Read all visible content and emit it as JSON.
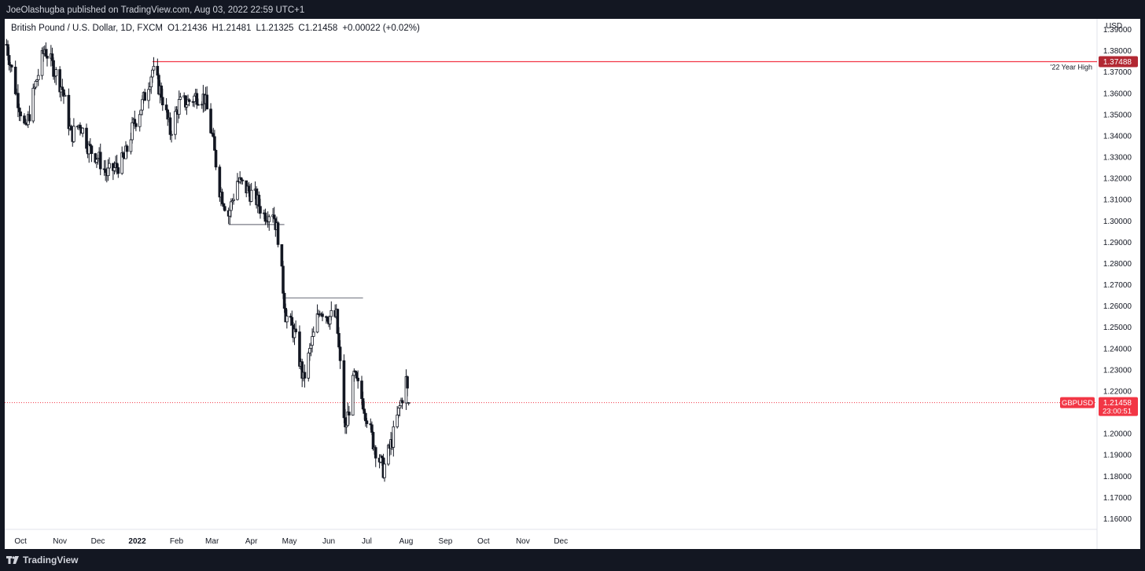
{
  "header": {
    "publisher_line": "JoeOlashugba published on TradingView.com, Aug 03, 2022 22:59 UTC+1"
  },
  "footer": {
    "brand": "TradingView",
    "logo_icon": "tradingview-logo-icon"
  },
  "chart_data": {
    "type": "candlestick",
    "title": "British Pound / U.S. Dollar, 1D, FXCM",
    "ohlc": {
      "open_label": "O",
      "open": "1.21436",
      "high_label": "H",
      "high": "1.21481",
      "low_label": "L",
      "low": "1.21325",
      "close_label": "C",
      "close": "1.21458",
      "change": "+0.00022 (+0.02%)"
    },
    "y_axis": {
      "unit_label": "USD",
      "range": [
        1.155,
        1.395
      ],
      "ticks": [
        "1.39000",
        "1.38000",
        "1.37000",
        "1.36000",
        "1.35000",
        "1.34000",
        "1.33000",
        "1.32000",
        "1.31000",
        "1.30000",
        "1.29000",
        "1.28000",
        "1.27000",
        "1.26000",
        "1.25000",
        "1.24000",
        "1.23000",
        "1.22000",
        "1.21000",
        "1.20000",
        "1.19000",
        "1.18000",
        "1.17000",
        "1.16000"
      ]
    },
    "x_axis": {
      "labels": [
        {
          "label": "Oct",
          "date": "2021-10-01"
        },
        {
          "label": "Nov",
          "date": "2021-11-01"
        },
        {
          "label": "Dec",
          "date": "2021-12-01"
        },
        {
          "label": "2022",
          "date": "2022-01-01",
          "bold": true
        },
        {
          "label": "Feb",
          "date": "2022-02-01"
        },
        {
          "label": "Mar",
          "date": "2022-03-01"
        },
        {
          "label": "Apr",
          "date": "2022-04-01"
        },
        {
          "label": "May",
          "date": "2022-05-01"
        },
        {
          "label": "Jun",
          "date": "2022-06-01"
        },
        {
          "label": "Jul",
          "date": "2022-07-01"
        },
        {
          "label": "Aug",
          "date": "2022-08-01"
        },
        {
          "label": "Sep",
          "date": "2022-09-01"
        },
        {
          "label": "Oct",
          "date": "2022-10-01"
        },
        {
          "label": "Nov",
          "date": "2022-11-01"
        },
        {
          "label": "Dec",
          "date": "2022-12-01"
        }
      ]
    },
    "close_path": [
      {
        "date": "2021-09-20",
        "close": 1.383
      },
      {
        "date": "2021-09-27",
        "close": 1.362
      },
      {
        "date": "2021-10-01",
        "close": 1.352
      },
      {
        "date": "2021-10-05",
        "close": 1.342
      },
      {
        "date": "2021-10-12",
        "close": 1.362
      },
      {
        "date": "2021-10-20",
        "close": 1.381
      },
      {
        "date": "2021-10-27",
        "close": 1.372
      },
      {
        "date": "2021-11-03",
        "close": 1.362
      },
      {
        "date": "2021-11-10",
        "close": 1.34
      },
      {
        "date": "2021-11-17",
        "close": 1.346
      },
      {
        "date": "2021-11-24",
        "close": 1.334
      },
      {
        "date": "2021-12-01",
        "close": 1.33
      },
      {
        "date": "2021-12-08",
        "close": 1.322
      },
      {
        "date": "2021-12-15",
        "close": 1.325
      },
      {
        "date": "2021-12-22",
        "close": 1.329
      },
      {
        "date": "2021-12-29",
        "close": 1.345
      },
      {
        "date": "2022-01-05",
        "close": 1.355
      },
      {
        "date": "2022-01-13",
        "close": 1.371
      },
      {
        "date": "2022-01-20",
        "close": 1.36
      },
      {
        "date": "2022-01-27",
        "close": 1.342
      },
      {
        "date": "2022-02-03",
        "close": 1.355
      },
      {
        "date": "2022-02-10",
        "close": 1.356
      },
      {
        "date": "2022-02-17",
        "close": 1.359
      },
      {
        "date": "2022-02-23",
        "close": 1.358
      },
      {
        "date": "2022-03-01",
        "close": 1.34
      },
      {
        "date": "2022-03-07",
        "close": 1.315
      },
      {
        "date": "2022-03-14",
        "close": 1.303
      },
      {
        "date": "2022-03-21",
        "close": 1.319
      },
      {
        "date": "2022-03-28",
        "close": 1.315
      },
      {
        "date": "2022-04-04",
        "close": 1.311
      },
      {
        "date": "2022-04-11",
        "close": 1.303
      },
      {
        "date": "2022-04-18",
        "close": 1.305
      },
      {
        "date": "2022-04-22",
        "close": 1.293
      },
      {
        "date": "2022-04-28",
        "close": 1.256
      },
      {
        "date": "2022-05-05",
        "close": 1.247
      },
      {
        "date": "2022-05-12",
        "close": 1.225
      },
      {
        "date": "2022-05-18",
        "close": 1.241
      },
      {
        "date": "2022-05-25",
        "close": 1.259
      },
      {
        "date": "2022-06-01",
        "close": 1.255
      },
      {
        "date": "2022-06-07",
        "close": 1.255
      },
      {
        "date": "2022-06-14",
        "close": 1.201
      },
      {
        "date": "2022-06-21",
        "close": 1.227
      },
      {
        "date": "2022-06-28",
        "close": 1.215
      },
      {
        "date": "2022-07-06",
        "close": 1.196
      },
      {
        "date": "2022-07-14",
        "close": 1.183
      },
      {
        "date": "2022-07-21",
        "close": 1.197
      },
      {
        "date": "2022-07-28",
        "close": 1.215
      },
      {
        "date": "2022-08-01",
        "close": 1.225
      },
      {
        "date": "2022-08-03",
        "close": 1.21458
      }
    ],
    "horizontal_lines": [
      {
        "start": "2022-01-13",
        "end": "2022-12-31",
        "price": 1.37488,
        "color": "#f23645",
        "text": "'22 Year High",
        "badge": "1.37488"
      },
      {
        "start": "2022-03-14",
        "end": "2022-04-27",
        "price": 1.2983,
        "color": "#787b86"
      },
      {
        "start": "2022-04-28",
        "end": "2022-06-28",
        "price": 1.2638,
        "color": "#787b86"
      }
    ],
    "last_price": {
      "symbol": "GBPUSD",
      "price": "1.21458",
      "countdown": "23:00:51",
      "color": "#f23645"
    }
  }
}
